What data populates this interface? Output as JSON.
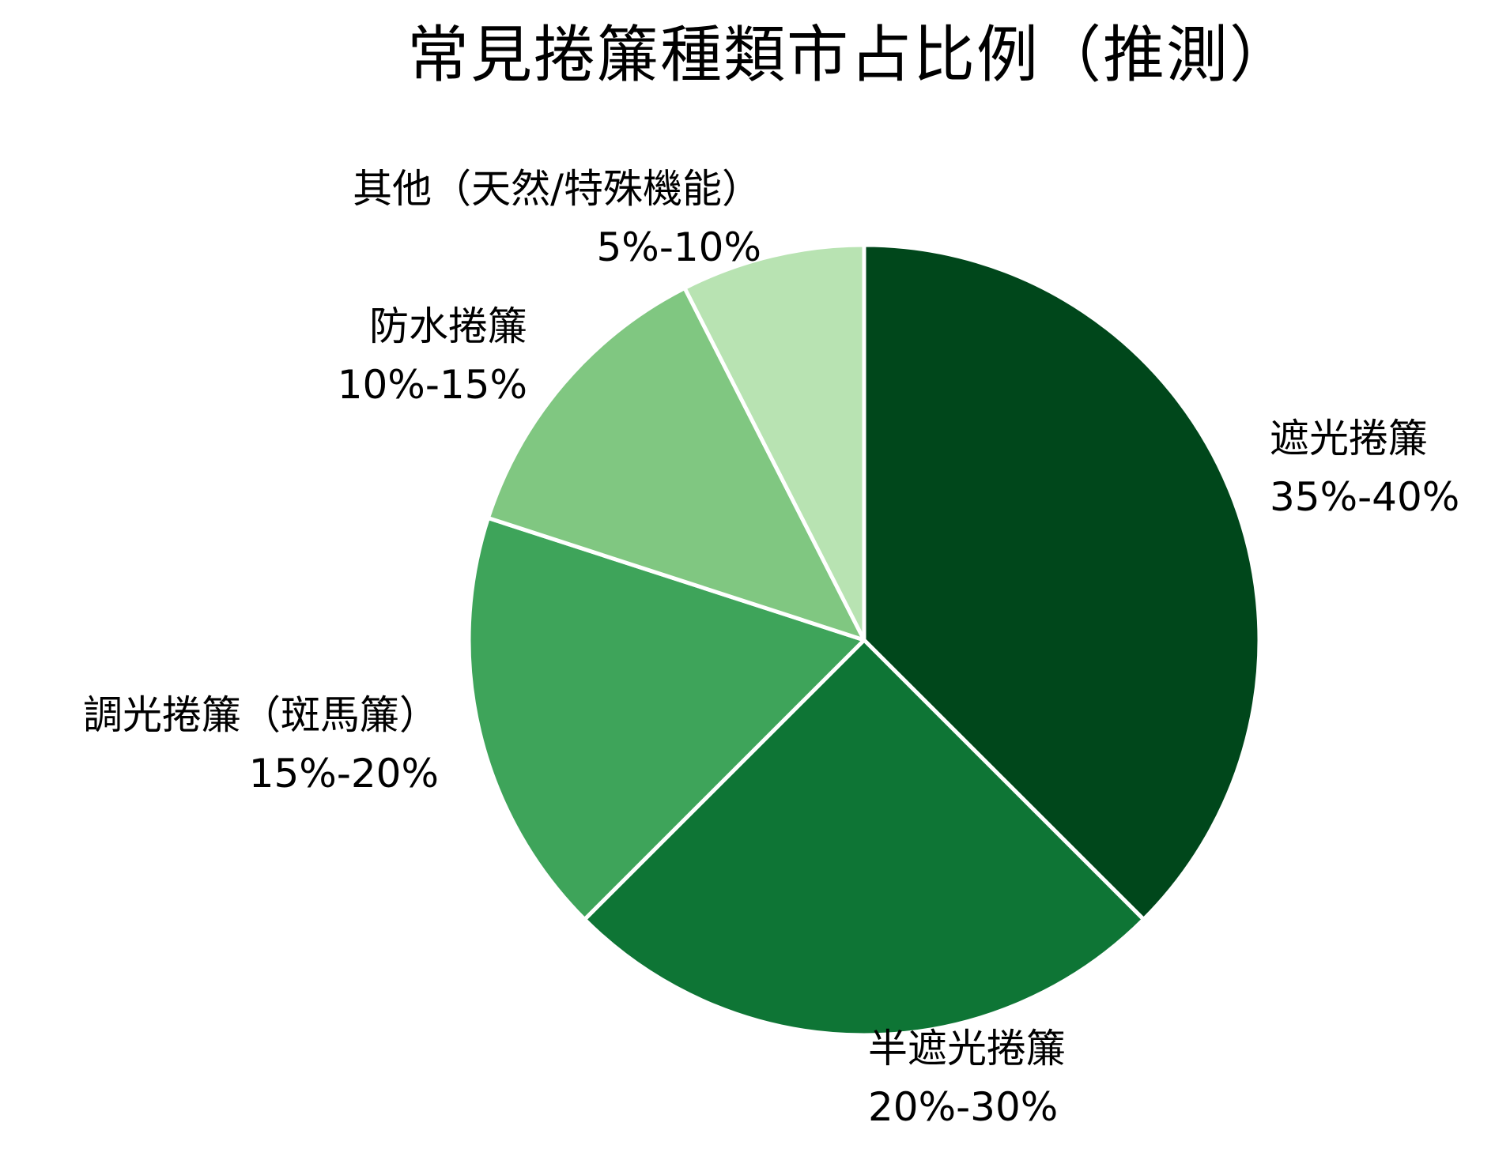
{
  "chart_data": {
    "type": "pie",
    "title": "常見捲簾種類市占比例（推測）",
    "start_angle_deg": 0,
    "direction": "clockwise",
    "center": [
      1093,
      810
    ],
    "radius": 500,
    "categories": [
      "遮光捲簾",
      "半遮光捲簾",
      "調光捲簾（斑馬簾）",
      "防水捲簾",
      "其他（天然/特殊機能）"
    ],
    "values": [
      37.5,
      25,
      17.5,
      12.5,
      7.5
    ],
    "value_labels": [
      "35%-40%",
      "20%-30%",
      "15%-20%",
      "10%-15%",
      "5%-10%"
    ],
    "colors": [
      "#00471b",
      "#0e7535",
      "#3ea45a",
      "#80c781",
      "#b8e3b2"
    ],
    "edge_color": "#ffffff",
    "legend": null,
    "xlabel": "",
    "ylabel": ""
  },
  "title": "常見捲簾種類市占比例（推測）",
  "labels": [
    {
      "name": "遮光捲簾",
      "pct": "35%-40%"
    },
    {
      "name": "半遮光捲簾",
      "pct": "20%-30%"
    },
    {
      "name": "調光捲簾（斑馬簾）",
      "pct": "15%-20%"
    },
    {
      "name": "防水捲簾",
      "pct": "10%-15%"
    },
    {
      "name": "其他（天然/特殊機能）",
      "pct": "5%-10%"
    }
  ]
}
